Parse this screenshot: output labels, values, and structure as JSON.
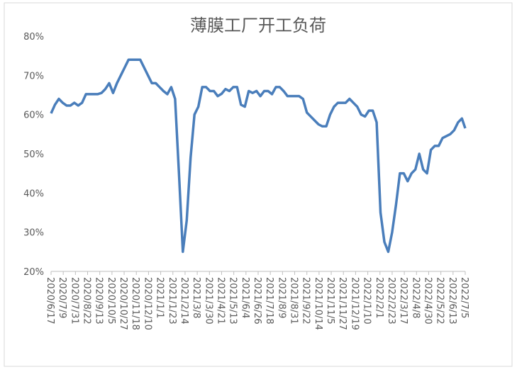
{
  "chart_data": {
    "type": "line",
    "title": "薄膜工厂开工负荷",
    "x": [
      "2020/6/17",
      "2020/6/24",
      "2020/7/1",
      "2020/7/8",
      "2020/7/15",
      "2020/7/22",
      "2020/7/29",
      "2020/8/5",
      "2020/8/12",
      "2020/8/19",
      "2020/8/26",
      "2020/9/2",
      "2020/9/9",
      "2020/9/16",
      "2020/9/23",
      "2020/9/30",
      "2020/10/7",
      "2020/10/14",
      "2020/10/21",
      "2020/10/28",
      "2020/11/4",
      "2020/11/11",
      "2020/11/18",
      "2020/11/25",
      "2020/12/2",
      "2020/12/9",
      "2020/12/16",
      "2020/12/23",
      "2020/12/30",
      "2021/1/6",
      "2021/1/13",
      "2021/1/20",
      "2021/1/27",
      "2021/2/3",
      "2021/2/10",
      "2021/2/17",
      "2021/2/24",
      "2021/3/3",
      "2021/3/10",
      "2021/3/17",
      "2021/3/24",
      "2021/3/31",
      "2021/4/7",
      "2021/4/14",
      "2021/4/21",
      "2021/4/28",
      "2021/5/5",
      "2021/5/12",
      "2021/5/19",
      "2021/5/26",
      "2021/6/2",
      "2021/6/9",
      "2021/6/16",
      "2021/6/23",
      "2021/6/30",
      "2021/7/7",
      "2021/7/14",
      "2021/7/21",
      "2021/7/28",
      "2021/8/4",
      "2021/8/11",
      "2021/8/18",
      "2021/8/25",
      "2021/9/1",
      "2021/9/8",
      "2021/9/15",
      "2021/9/22",
      "2021/9/29",
      "2021/10/6",
      "2021/10/13",
      "2021/10/20",
      "2021/10/27",
      "2021/11/3",
      "2021/11/10",
      "2021/11/17",
      "2021/11/24",
      "2021/12/1",
      "2021/12/8",
      "2021/12/15",
      "2021/12/22",
      "2021/12/29",
      "2022/1/5",
      "2022/1/12",
      "2022/1/19",
      "2022/1/26",
      "2022/2/2",
      "2022/2/9",
      "2022/2/16",
      "2022/2/23",
      "2022/3/2",
      "2022/3/9",
      "2022/3/16",
      "2022/3/23",
      "2022/3/30",
      "2022/4/6",
      "2022/4/13",
      "2022/4/20",
      "2022/4/27",
      "2022/5/4",
      "2022/5/11",
      "2022/5/18",
      "2022/5/25",
      "2022/6/1",
      "2022/6/8",
      "2022/6/15",
      "2022/6/22",
      "2022/6/29",
      "2022/7/5"
    ],
    "values": [
      60.3,
      62.5,
      64,
      63,
      62.3,
      62.3,
      63,
      62.3,
      63,
      65.2,
      65.2,
      65.2,
      65.2,
      65.5,
      66.5,
      68,
      65.5,
      68,
      70,
      72,
      74,
      74,
      74,
      74,
      72,
      70,
      68,
      68,
      67,
      66,
      65.2,
      67,
      64,
      45,
      25,
      33,
      49,
      60,
      62,
      67,
      67,
      66,
      66,
      64.7,
      65.3,
      66.5,
      66,
      67,
      67,
      62.5,
      62,
      66,
      65.5,
      66,
      64.7,
      66,
      66,
      65.2,
      67,
      67,
      66,
      64.7,
      64.7,
      64.7,
      64.7,
      64,
      60.5,
      59.5,
      58.5,
      57.5,
      57,
      57,
      60,
      62,
      63,
      63,
      63,
      64,
      63,
      62,
      60,
      59.5,
      61,
      61,
      58,
      35,
      27.5,
      25,
      30,
      37,
      45,
      45,
      43,
      45,
      46,
      50,
      46,
      45,
      51,
      52,
      52,
      54,
      54.5,
      55,
      56,
      58,
      59,
      56.5
    ],
    "color": "#4a7ebb",
    "xlim": [
      "2020/6/17",
      "2022/7/5"
    ],
    "xticks": [
      "2020/6/17",
      "2020/7/9",
      "2020/7/31",
      "2020/8/22",
      "2020/9/13",
      "2020/10/5",
      "2020/10/27",
      "2020/11/18",
      "2020/12/10",
      "2021/1/1",
      "2021/1/23",
      "2021/2/14",
      "2021/3/8",
      "2021/3/30",
      "2021/4/21",
      "2021/5/13",
      "2021/6/4",
      "2021/6/26",
      "2021/7/18",
      "2021/8/9",
      "2021/8/31",
      "2021/9/22",
      "2021/10/14",
      "2021/11/5",
      "2021/11/27",
      "2021/12/19",
      "2022/1/10",
      "2022/2/1",
      "2022/2/23",
      "2022/3/17",
      "2022/4/8",
      "2022/4/30",
      "2022/5/22",
      "2022/6/13",
      "2022/7/5"
    ],
    "ylim": [
      20,
      80
    ],
    "yticks": [
      {
        "value": 20,
        "label": "20%"
      },
      {
        "value": 30,
        "label": "30%"
      },
      {
        "value": 40,
        "label": "40%"
      },
      {
        "value": 50,
        "label": "50%"
      },
      {
        "value": 60,
        "label": "60%"
      },
      {
        "value": 70,
        "label": "70%"
      },
      {
        "value": 80,
        "label": "80%"
      }
    ],
    "grid": false
  }
}
